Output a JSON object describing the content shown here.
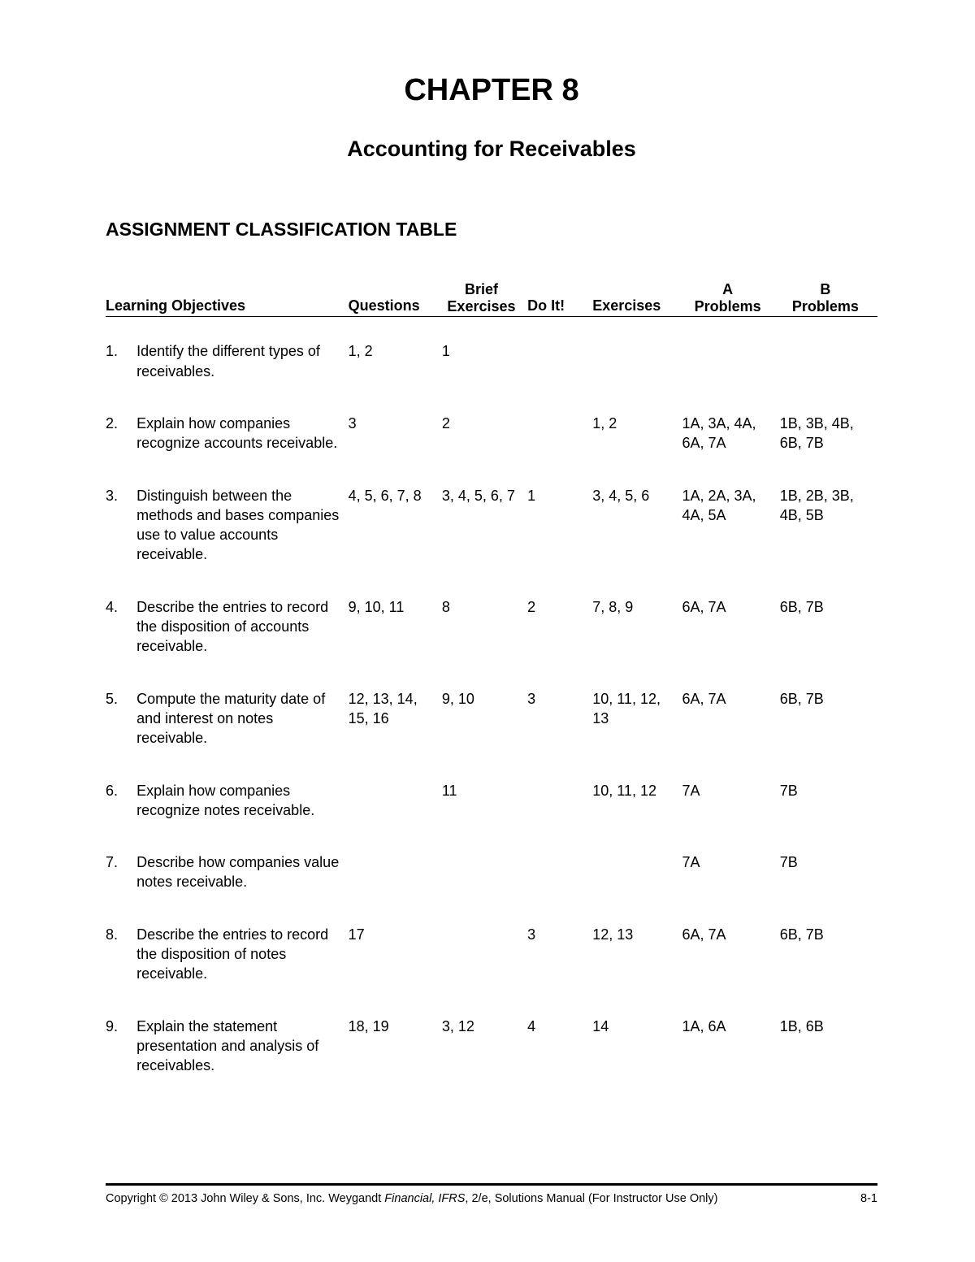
{
  "chapter_title": "CHAPTER 8",
  "chapter_subtitle": "Accounting for Receivables",
  "section_heading": "ASSIGNMENT CLASSIFICATION TABLE",
  "table": {
    "columns": {
      "objectives": "Learning Objectives",
      "questions": "Questions",
      "brief_ex_top": "Brief",
      "brief_ex_bot": "Exercises",
      "doit": "Do It!",
      "exercises": "Exercises",
      "aprob_top": "A",
      "aprob_bot": "Problems",
      "bprob_top": "B",
      "bprob_bot": "Problems"
    },
    "rows": [
      {
        "num": "1.",
        "objective": "Identify the different types of receivables.",
        "questions": "1, 2",
        "brief_ex": "1",
        "doit": "",
        "exercises": "",
        "aprob": "",
        "bprob": ""
      },
      {
        "num": "2.",
        "objective": "Explain how companies recognize accounts receivable.",
        "questions": "3",
        "brief_ex": "2",
        "doit": "",
        "exercises": "1, 2",
        "aprob": "1A, 3A, 4A, 6A, 7A",
        "bprob": "1B, 3B, 4B, 6B, 7B"
      },
      {
        "num": "3.",
        "objective": "Distinguish between the methods and bases companies use to value accounts receivable.",
        "questions": "4, 5, 6, 7, 8",
        "brief_ex": "3, 4, 5, 6, 7",
        "doit": "1",
        "exercises": "3, 4, 5, 6",
        "aprob": "1A, 2A, 3A, 4A, 5A",
        "bprob": "1B, 2B, 3B, 4B, 5B"
      },
      {
        "num": "4.",
        "objective": "Describe the entries to record the disposition of accounts receivable.",
        "questions": "9, 10, 11",
        "brief_ex": "8",
        "doit": "2",
        "exercises": "7, 8, 9",
        "aprob": "6A, 7A",
        "bprob": "6B, 7B"
      },
      {
        "num": "5.",
        "objective": "Compute the maturity date of and interest on notes receivable.",
        "questions": "12, 13, 14, 15, 16",
        "brief_ex": "9, 10",
        "doit": "3",
        "exercises": "10, 11, 12, 13",
        "aprob": "6A, 7A",
        "bprob": "6B, 7B"
      },
      {
        "num": "6.",
        "objective": "Explain how companies recognize notes receivable.",
        "questions": "",
        "brief_ex": "11",
        "doit": "",
        "exercises": "10, 11, 12",
        "aprob": "7A",
        "bprob": "7B"
      },
      {
        "num": "7.",
        "objective": "Describe how companies value notes receivable.",
        "questions": "",
        "brief_ex": "",
        "doit": "",
        "exercises": "",
        "aprob": "7A",
        "bprob": "7B"
      },
      {
        "num": "8.",
        "objective": "Describe the entries to record the disposition of notes receivable.",
        "questions": "17",
        "brief_ex": "",
        "doit": "3",
        "exercises": "12, 13",
        "aprob": "6A, 7A",
        "bprob": "6B, 7B"
      },
      {
        "num": "9.",
        "objective": "Explain the statement presentation and analysis of receivables.",
        "questions": "18, 19",
        "brief_ex": "3, 12",
        "doit": "4",
        "exercises": "14",
        "aprob": "1A, 6A",
        "bprob": "1B, 6B"
      }
    ]
  },
  "footer": {
    "copyright_prefix": "Copyright © 2013 John Wiley & Sons, Inc.   Weygandt ",
    "book_title": "Financial, IFRS",
    "copyright_suffix": ", 2/e, Solutions Manual   (For Instructor Use Only)",
    "page_num": "8-1"
  }
}
